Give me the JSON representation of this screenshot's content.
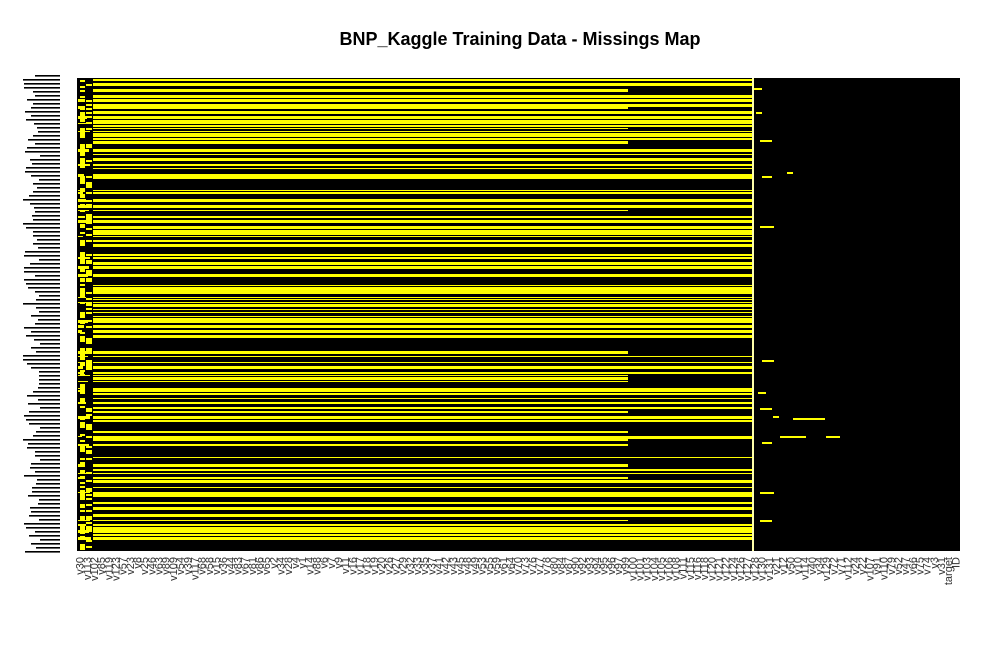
{
  "chart_data": {
    "type": "heatmap",
    "title": "BNP_Kaggle Training Data - Missings Map",
    "colors": {
      "observed": "#000000",
      "missing": "#ffff00"
    },
    "x_tick_labels": [
      "v30",
      "v113",
      "v102",
      "v85",
      "v119",
      "v123",
      "v57",
      "v23",
      "v8",
      "v25",
      "v46",
      "v63",
      "v89",
      "v109",
      "v54",
      "v39",
      "v117",
      "v68",
      "v58",
      "v15",
      "v36",
      "v44",
      "v83",
      "v67",
      "v81",
      "v86",
      "v65",
      "v2",
      "v34",
      "v28",
      "v4",
      "v1",
      "v14",
      "v88",
      "v6",
      "v7",
      "v9",
      "v11",
      "v16",
      "v17",
      "v18",
      "v19",
      "v20",
      "v26",
      "v27",
      "v29",
      "v32",
      "v33",
      "v35",
      "v37",
      "v41",
      "v42",
      "v43",
      "v45",
      "v48",
      "v49",
      "v53",
      "v55",
      "v59",
      "v61",
      "v64",
      "v70",
      "v73",
      "v76",
      "v77",
      "v78",
      "v80",
      "v84",
      "v87",
      "v90",
      "v92",
      "v93",
      "v94",
      "v95",
      "v96",
      "v97",
      "v99",
      "v100",
      "v101",
      "v103",
      "v104",
      "v105",
      "v106",
      "v108",
      "v111",
      "v115",
      "v116",
      "v118",
      "v120",
      "v121",
      "v122",
      "v124",
      "v126",
      "v127",
      "v128",
      "v130",
      "v131",
      "v21",
      "v12",
      "v50",
      "v10",
      "v114",
      "v40",
      "v34",
      "v129",
      "v72",
      "v71",
      "v112",
      "v24",
      "v22",
      "v107",
      "v91",
      "v110",
      "v79",
      "v52",
      "v47",
      "v66",
      "v75",
      "v74",
      "v3",
      "v31",
      "target",
      "ID"
    ],
    "missing_fraction_by_block": [
      {
        "columns": "v30 – v128 (left block)",
        "missing_fraction": 0.44
      },
      {
        "columns": "v131 – ID (right block)",
        "missing_fraction": 0.01
      }
    ]
  }
}
